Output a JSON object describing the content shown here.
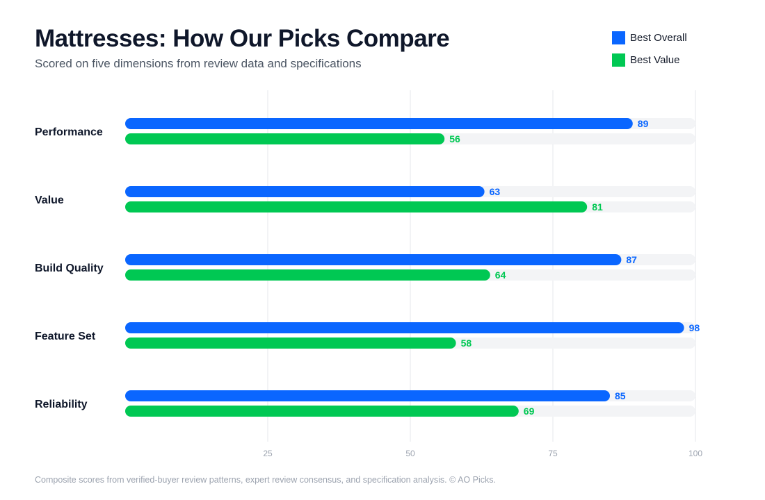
{
  "header": {
    "title": "Mattresses: How Our Picks Compare",
    "subtitle": "Scored on five dimensions from review data and specifications"
  },
  "footnote": "Composite scores from verified-buyer review patterns, expert review consensus, and specification analysis. © AO Picks.",
  "colors": {
    "best_overall": "#0a66ff",
    "best_value": "#00c853",
    "track": "#f3f4f6",
    "grid": "#e5e7eb"
  },
  "chart_data": {
    "type": "bar",
    "orientation": "horizontal",
    "categories": [
      "Performance",
      "Value",
      "Build Quality",
      "Feature Set",
      "Reliability"
    ],
    "series": [
      {
        "name": "Best Overall",
        "color": "#0a66ff",
        "values": [
          89,
          63,
          87,
          98,
          85
        ]
      },
      {
        "name": "Best Value",
        "color": "#00c853",
        "values": [
          56,
          81,
          64,
          58,
          69
        ]
      }
    ],
    "xlim": [
      0,
      100
    ],
    "xticks": [
      25,
      50,
      75,
      100
    ],
    "grid": true,
    "legend": "top-right",
    "data_labels": true
  }
}
